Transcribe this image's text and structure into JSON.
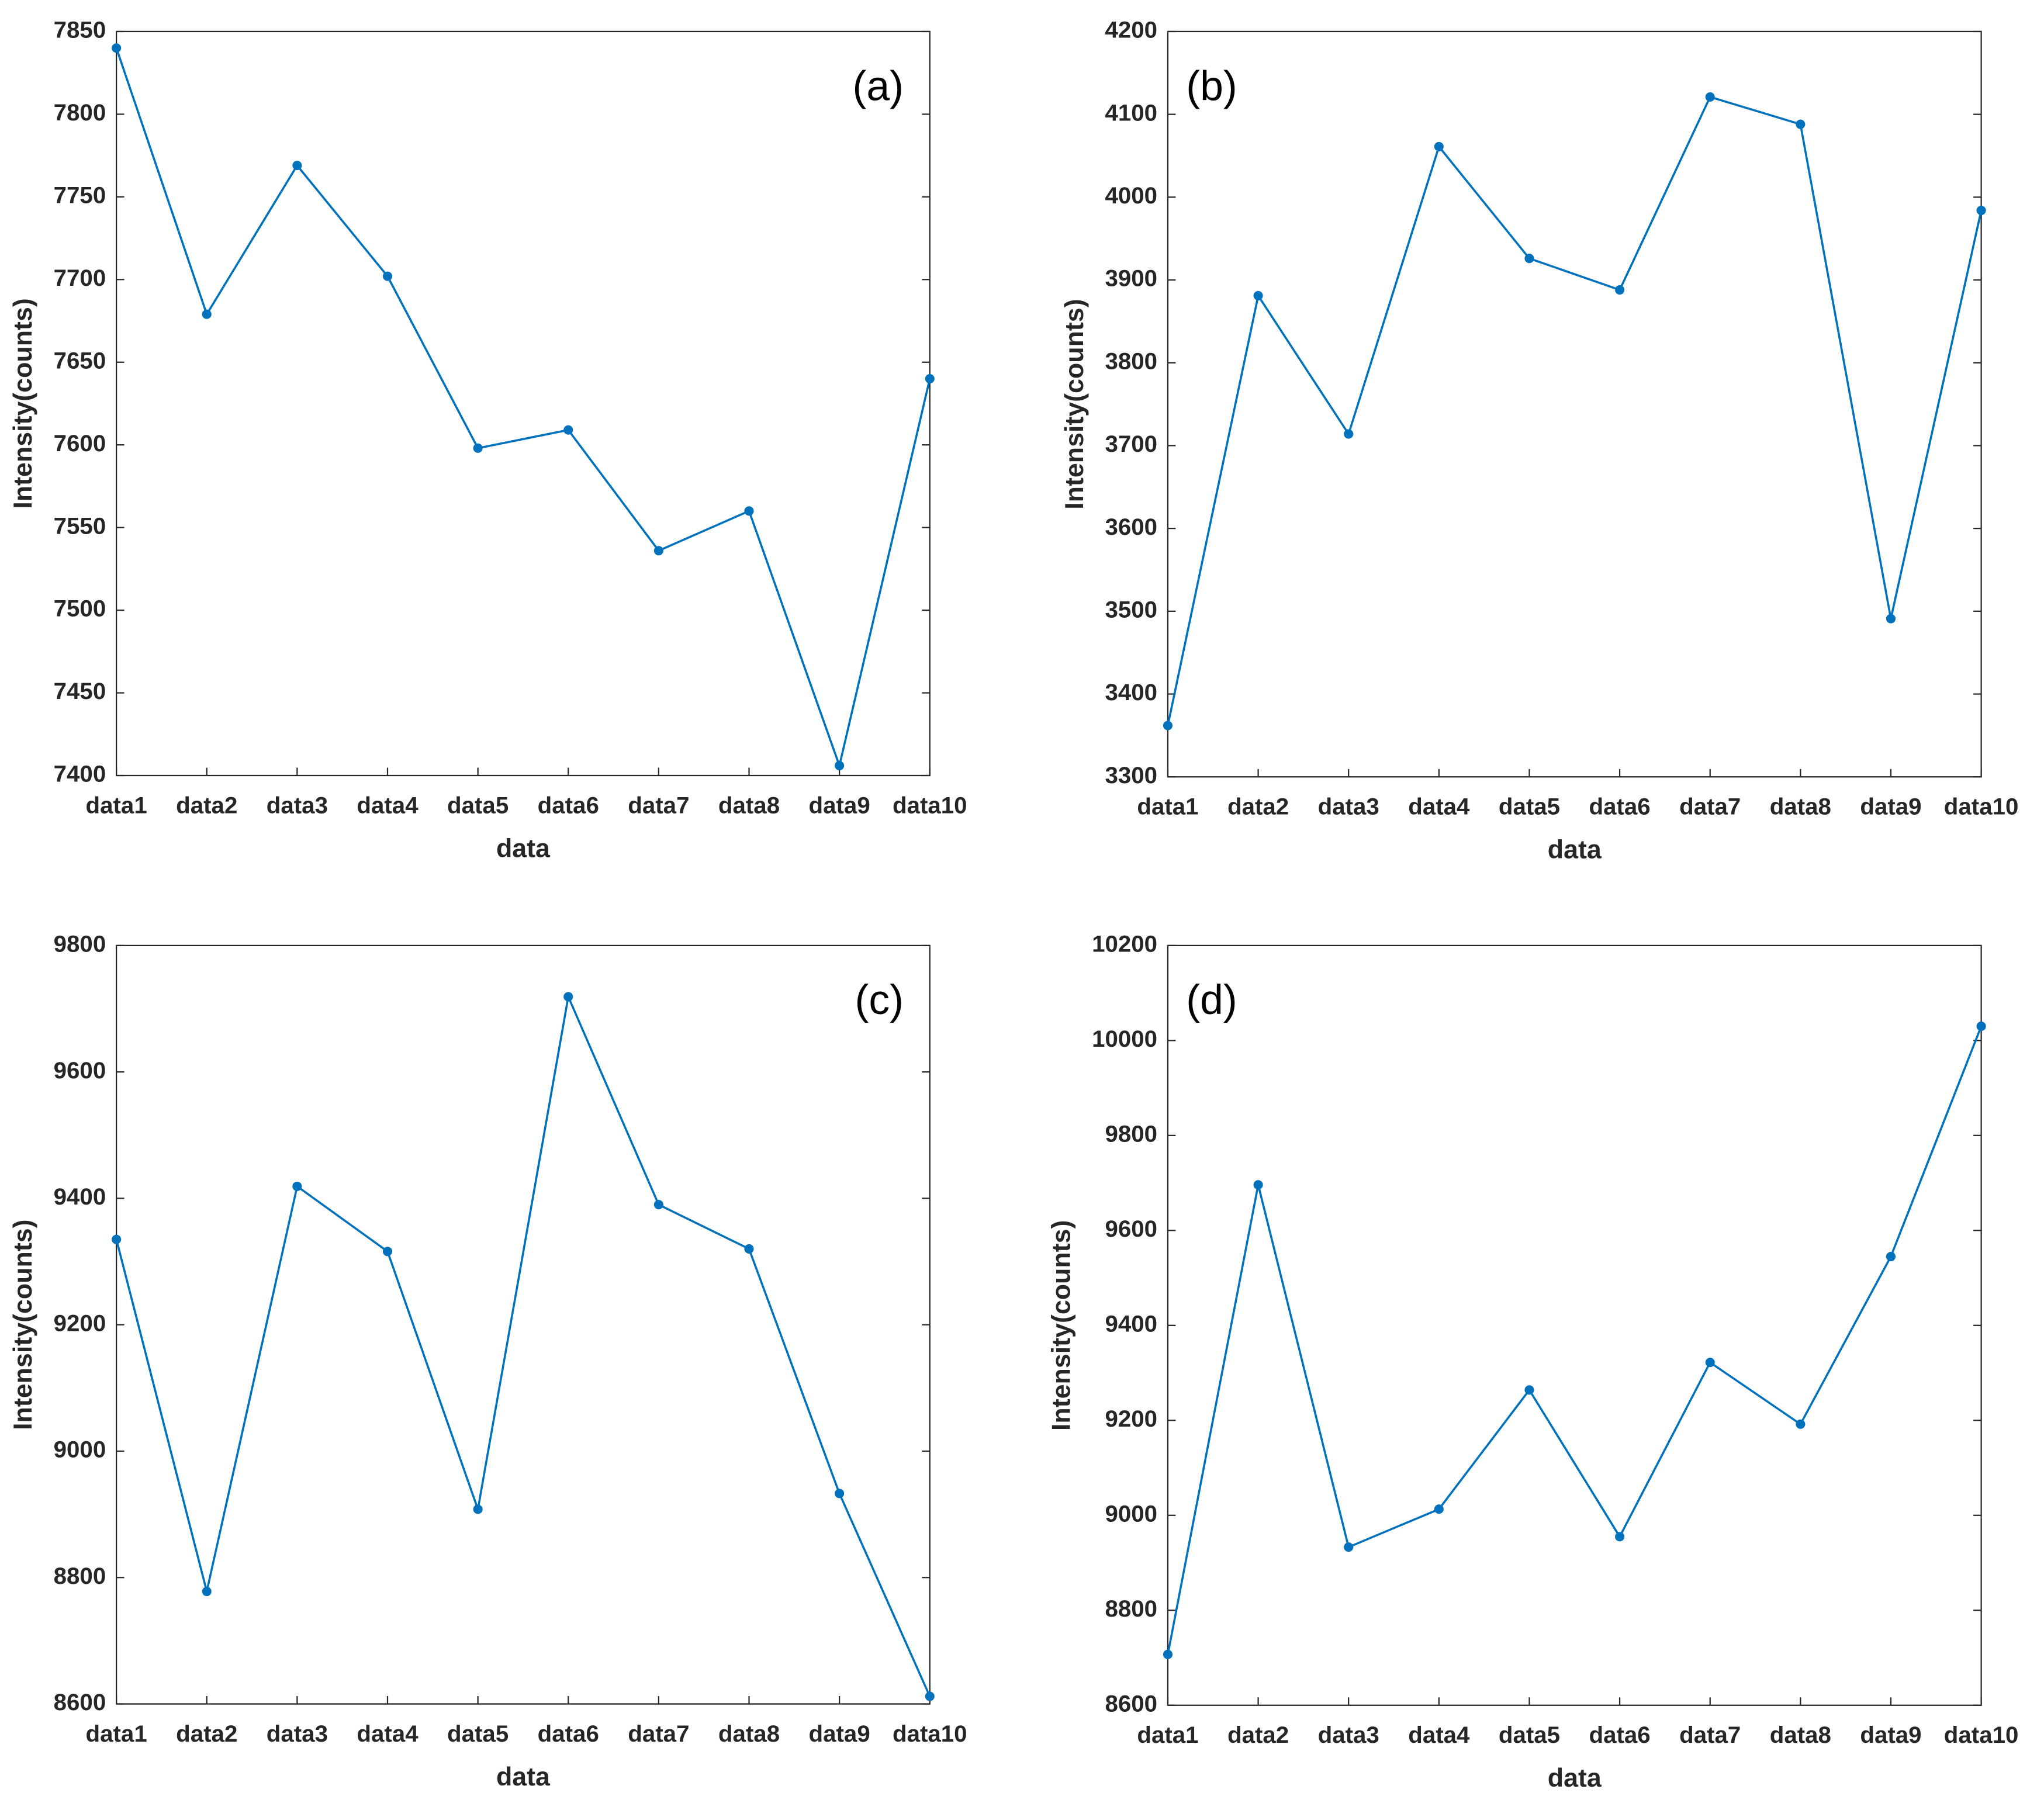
{
  "chart_data": [
    {
      "type": "line",
      "annotation": "(a)",
      "annotation_corner": "top-right",
      "x_label": "data",
      "y_label": "Intensity(counts)",
      "categories": [
        "data1",
        "data2",
        "data3",
        "data4",
        "data5",
        "data6",
        "data7",
        "data8",
        "data9",
        "data10"
      ],
      "values": [
        7840,
        7679,
        7769,
        7702,
        7598,
        7609,
        7536,
        7560,
        7406,
        7640
      ],
      "color": "#0072bd",
      "ylim": [
        7400,
        7850
      ],
      "yticks": [
        7400,
        7450,
        7500,
        7550,
        7600,
        7650,
        7700,
        7750,
        7800,
        7850
      ]
    },
    {
      "type": "line",
      "annotation": "(b)",
      "annotation_corner": "top-left",
      "x_label": "data",
      "y_label": "Intensity(counts)",
      "categories": [
        "data1",
        "data2",
        "data3",
        "data4",
        "data5",
        "data6",
        "data7",
        "data8",
        "data9",
        "data10"
      ],
      "values": [
        3362,
        3881,
        3714,
        4061,
        3926,
        3888,
        4121,
        4088,
        3491,
        3984
      ],
      "color": "#0072bd",
      "ylim": [
        3300,
        4200
      ],
      "yticks": [
        3300,
        3400,
        3500,
        3600,
        3700,
        3800,
        3900,
        4000,
        4100,
        4200
      ]
    },
    {
      "type": "line",
      "annotation": "(c)",
      "annotation_corner": "top-right",
      "x_label": "data",
      "y_label": "Intensity(counts)",
      "categories": [
        "data1",
        "data2",
        "data3",
        "data4",
        "data5",
        "data6",
        "data7",
        "data8",
        "data9",
        "data10"
      ],
      "values": [
        9335,
        8778,
        9419,
        9316,
        8908,
        9719,
        9390,
        9320,
        8933,
        8612
      ],
      "color": "#0072bd",
      "ylim": [
        8600,
        9800
      ],
      "yticks": [
        8600,
        8800,
        9000,
        9200,
        9400,
        9600,
        9800
      ]
    },
    {
      "type": "line",
      "annotation": "(d)",
      "annotation_corner": "top-left",
      "x_label": "data",
      "y_label": "Intensity(counts)",
      "categories": [
        "data1",
        "data2",
        "data3",
        "data4",
        "data5",
        "data6",
        "data7",
        "data8",
        "data9",
        "data10"
      ],
      "values": [
        8707,
        9696,
        8933,
        9013,
        9264,
        8955,
        9322,
        9192,
        9545,
        10030
      ],
      "color": "#0072bd",
      "ylim": [
        8600,
        10200
      ],
      "yticks": [
        8600,
        8800,
        9000,
        9200,
        9400,
        9600,
        9800,
        10000,
        10200
      ]
    }
  ]
}
